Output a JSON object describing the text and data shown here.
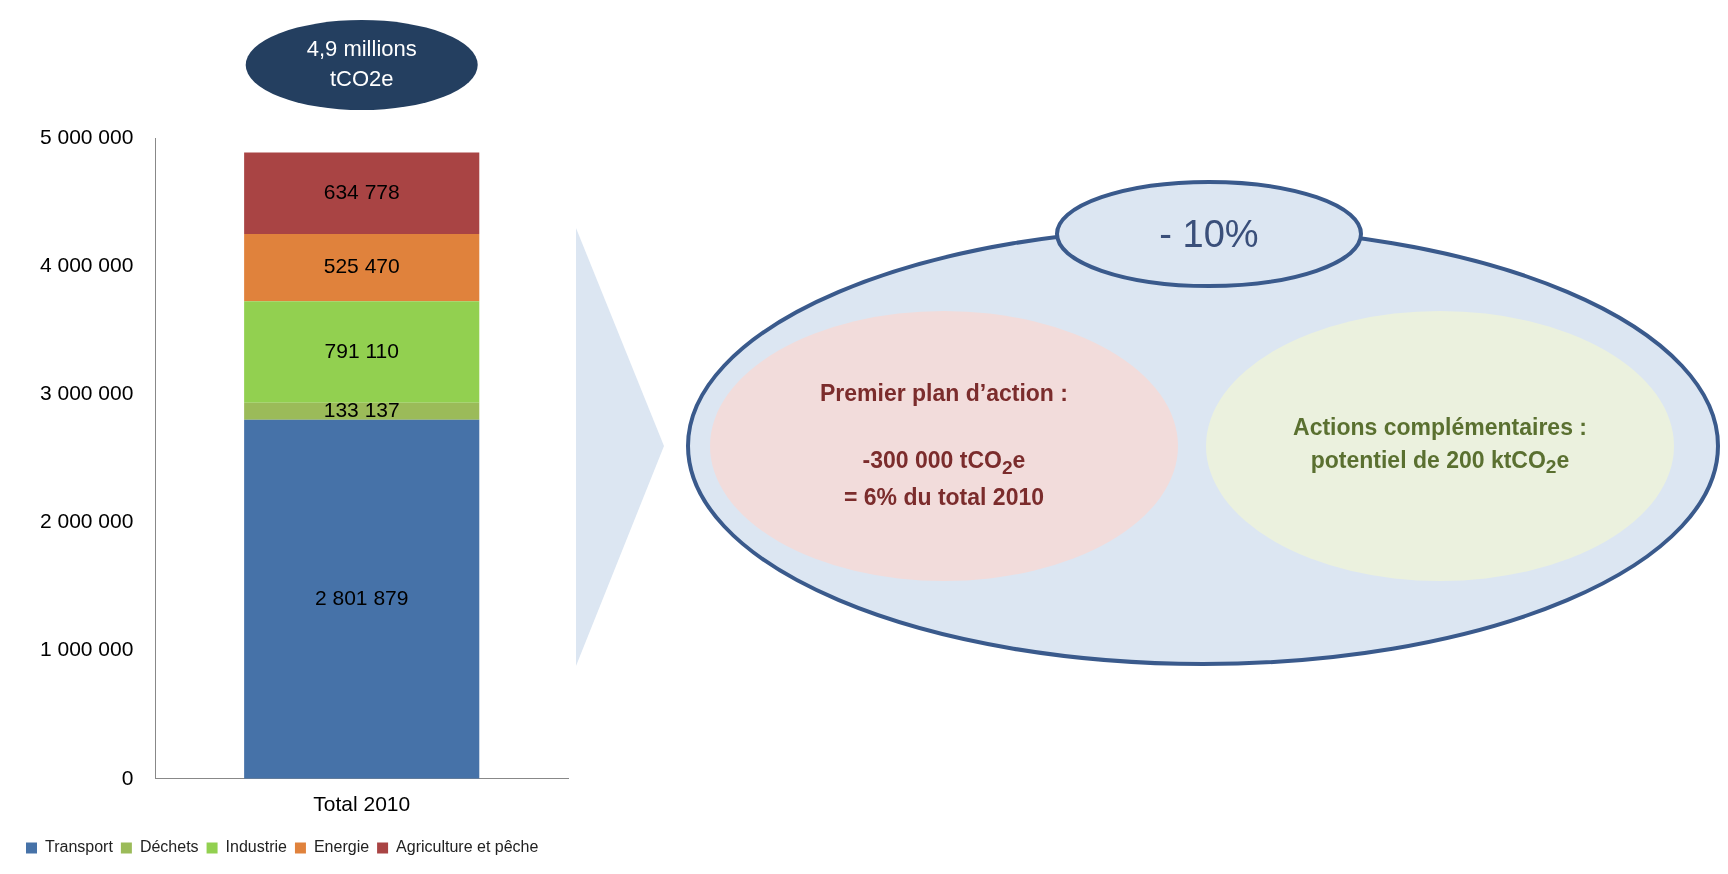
{
  "chart_data": {
    "type": "bar",
    "stacked": true,
    "categories": [
      "Total 2010"
    ],
    "series": [
      {
        "name": "Transport",
        "color": "#4672a8",
        "values": [
          2801879
        ],
        "value_labels": [
          "2 801 879"
        ]
      },
      {
        "name": "Déchets",
        "color": "#9bbb59",
        "values": [
          133137
        ],
        "value_labels": [
          "133 137"
        ]
      },
      {
        "name": "Industrie",
        "color": "#92d050",
        "values": [
          791110
        ],
        "value_labels": [
          "791 110"
        ]
      },
      {
        "name": "Energie",
        "color": "#e0823c",
        "values": [
          525470
        ],
        "value_labels": [
          "525 470"
        ]
      },
      {
        "name": "Agriculture et pêche",
        "color": "#a94444",
        "values": [
          634778
        ],
        "value_labels": [
          "634 778"
        ]
      }
    ],
    "totals": [
      "4,9 millions tCO2e"
    ],
    "ylim": [
      0,
      5000000
    ],
    "yticks": [
      {
        "value": 0,
        "label": "0"
      },
      {
        "value": 1000000,
        "label": "1 000 000"
      },
      {
        "value": 2000000,
        "label": "2 000 000"
      },
      {
        "value": 3000000,
        "label": "3 000 000"
      },
      {
        "value": 4000000,
        "label": "4 000 000"
      },
      {
        "value": 5000000,
        "label": "5 000 000"
      }
    ],
    "grid": false,
    "legend": "bottom left",
    "annotations": [
      "- 10%",
      "Premier plan d’action :\n\n-300 000 tCO$_{2}$e\n= 6% du total 2010",
      "Actions complémentaires :\npotentiel de 200 ktCO$_{2}$e"
    ]
  }
}
